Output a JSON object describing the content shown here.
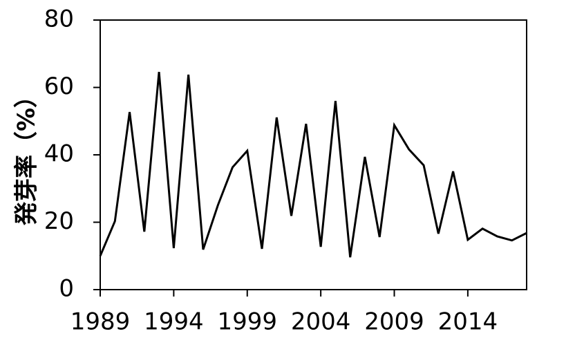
{
  "chart_data": {
    "type": "line",
    "ylabel": "発芽率（%）",
    "x": [
      1989,
      1990,
      1991,
      1992,
      1993,
      1994,
      1995,
      1996,
      1997,
      1998,
      1999,
      2000,
      2001,
      2002,
      2003,
      2004,
      2005,
      2006,
      2007,
      2008,
      2009,
      2010,
      2011,
      2012,
      2013,
      2014,
      2015,
      2016,
      2017,
      2018
    ],
    "series": [
      {
        "color": "#000000",
        "values": [
          10,
          20.3,
          52.7,
          17.2,
          64.6,
          12.3,
          63.8,
          11.9,
          25,
          36.3,
          41.2,
          12.1,
          51.1,
          21.9,
          49.2,
          12.7,
          56,
          9.6,
          39.4,
          15.6,
          48.8,
          41.6,
          36.9,
          16.6,
          35.1,
          14.8,
          18.1,
          15.8,
          14.6,
          16.8
        ]
      }
    ],
    "xlim": [
      1989,
      2018
    ],
    "xticks": [
      1989,
      1994,
      1999,
      2004,
      2009,
      2014
    ],
    "ylim": [
      0,
      80
    ],
    "yticks": [
      0,
      20,
      40,
      60,
      80
    ],
    "grid": false
  }
}
